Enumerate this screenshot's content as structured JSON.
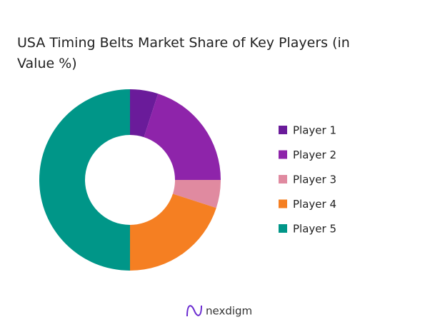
{
  "chart_data": {
    "type": "donut",
    "title": "USA Timing Belts Market Share of Key Players (in Value %)",
    "categories": [
      "Player 1",
      "Player 2",
      "Player 3",
      "Player 4",
      "Player 5"
    ],
    "values": [
      5,
      20,
      5,
      20,
      50
    ],
    "colors": [
      "#6a1b9a",
      "#8e24aa",
      "#e08aa0",
      "#f57f22",
      "#009688"
    ],
    "legend": "right"
  },
  "logo": "nexdigm"
}
